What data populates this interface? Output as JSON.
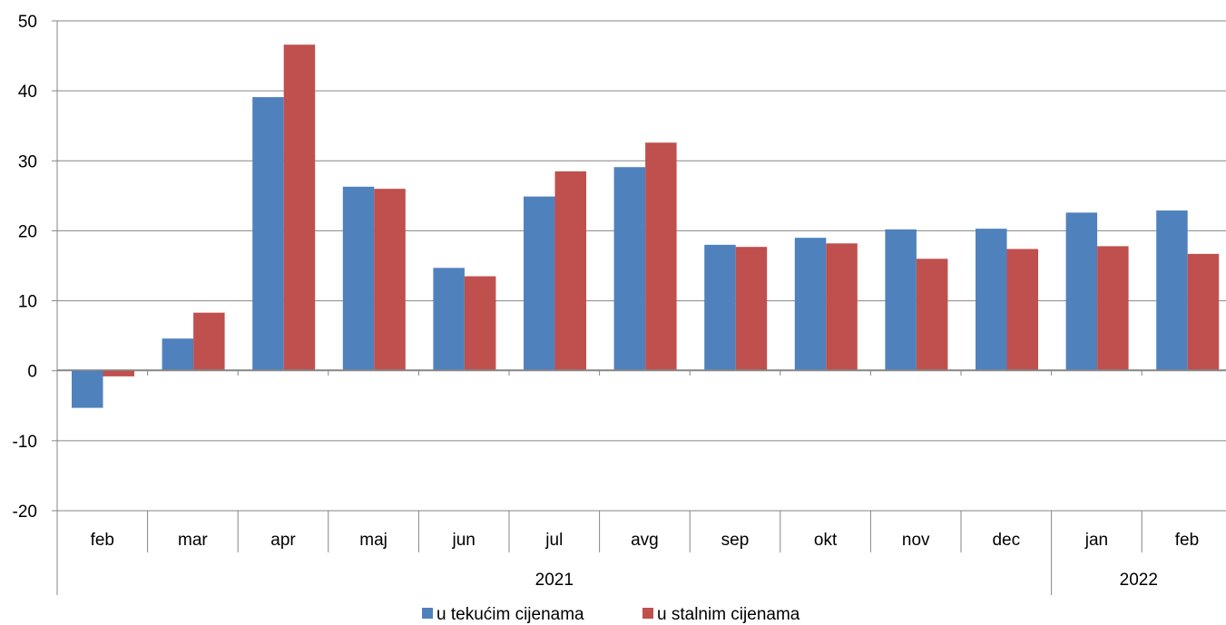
{
  "chart_data": {
    "type": "bar",
    "categories": [
      "feb",
      "mar",
      "apr",
      "maj",
      "jun",
      "jul",
      "avg",
      "sep",
      "okt",
      "nov",
      "dec",
      "jan",
      "feb"
    ],
    "groups": [
      {
        "label": "2021",
        "count": 11
      },
      {
        "label": "2022",
        "count": 2
      }
    ],
    "series": [
      {
        "name": "u tekućim cijenama",
        "color": "#4F81BD",
        "values": [
          -5.3,
          4.6,
          39.1,
          26.3,
          14.7,
          24.9,
          29.1,
          18.0,
          19.0,
          20.2,
          20.3,
          22.6,
          22.9
        ]
      },
      {
        "name": "u stalnim cijenama",
        "color": "#C0504D",
        "values": [
          -0.8,
          8.3,
          46.6,
          26.0,
          13.5,
          28.5,
          32.6,
          17.7,
          18.2,
          16.0,
          17.4,
          17.8,
          16.7
        ]
      }
    ],
    "ylim": [
      -20,
      50
    ],
    "yticks": [
      50,
      40,
      30,
      20,
      10,
      0,
      -10,
      -20
    ],
    "grid": true,
    "legend_position": "bottom"
  }
}
